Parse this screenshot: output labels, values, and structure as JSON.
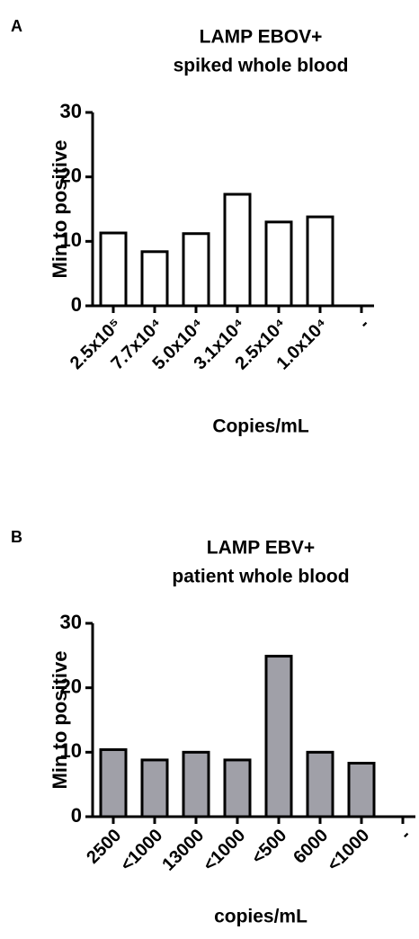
{
  "chart_data": [
    {
      "type": "bar",
      "panel_label": "A",
      "title": [
        "LAMP EBOV+",
        "spiked whole blood"
      ],
      "y_label": "Min to positive",
      "x_label": "Copies/mL",
      "categories": [
        "2.5x10⁵",
        "7.7x10⁴",
        "5.0x10⁴",
        "3.1x10⁴",
        "2.5x10⁴",
        "1.0x10⁴",
        "-"
      ],
      "values": [
        11.3,
        8.4,
        11.2,
        17.3,
        13,
        13.8,
        null
      ],
      "color": "#ffffff",
      "ylim": [
        0,
        30
      ],
      "yticks": [
        0,
        10,
        20,
        30
      ]
    },
    {
      "type": "bar",
      "panel_label": "B",
      "title": [
        "LAMP EBV+",
        "patient whole blood"
      ],
      "y_label": "Min to positive",
      "x_label": "copies/mL",
      "categories": [
        "2500",
        "<1000",
        "13000",
        "<1000",
        "<500",
        "6000",
        "<1000",
        "-"
      ],
      "values": [
        10.4,
        8.8,
        10,
        8.8,
        24.9,
        10,
        8.3,
        null
      ],
      "color": "#a0a0a8",
      "ylim": [
        0,
        30
      ],
      "yticks": [
        0,
        10,
        20,
        30
      ]
    }
  ]
}
